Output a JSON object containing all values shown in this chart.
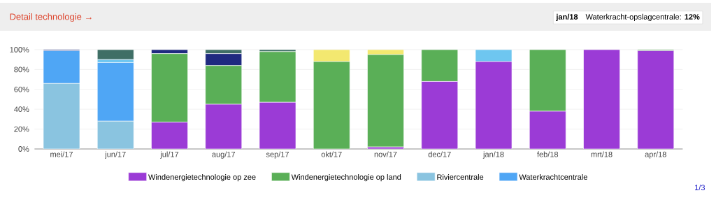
{
  "chart_data": {
    "type": "bar",
    "stacked": true,
    "title": "Detail technologie →",
    "categories": [
      "mei/17",
      "jun/17",
      "jul/17",
      "aug/17",
      "sep/17",
      "okt/17",
      "nov/17",
      "dec/17",
      "jan/18",
      "feb/18",
      "mrt/18",
      "apr/18"
    ],
    "series": [
      {
        "name": "Windenergietechnologie op zee",
        "color": "#9b3bd6",
        "values": [
          0,
          0,
          27,
          45,
          47,
          0,
          2,
          68,
          88,
          38,
          100,
          99
        ]
      },
      {
        "name": "Windenergietechnologie op land",
        "color": "#5aaf57",
        "values": [
          0,
          0,
          69,
          39,
          51,
          88,
          93,
          32,
          0,
          62,
          0,
          1
        ]
      },
      {
        "name": "Riviercentrale",
        "color": "#8ac4e0",
        "values": [
          66,
          28,
          0,
          0,
          0,
          0,
          0,
          0,
          0,
          0,
          0,
          0
        ]
      },
      {
        "name": "Waterkrachtcentrale",
        "color": "#4fa6f5",
        "values": [
          33,
          59,
          0,
          0,
          0,
          0,
          0,
          0,
          0,
          0,
          0,
          0
        ]
      },
      {
        "color": "#6ec6f0",
        "values": [
          0,
          3,
          0,
          null,
          0,
          0,
          0,
          0,
          12,
          0,
          0,
          0
        ]
      },
      {
        "color": "#1f2a80",
        "values": [
          1,
          0,
          4,
          12,
          0,
          0,
          0,
          0,
          0,
          0,
          0,
          0
        ]
      },
      {
        "color": "#3f6f66",
        "values": [
          0,
          10,
          0,
          4,
          2,
          0,
          0,
          0,
          0,
          0,
          0,
          0
        ]
      },
      {
        "color": "#f3e870",
        "values": [
          0,
          0,
          0,
          0,
          0,
          12,
          5,
          0,
          0,
          0,
          0,
          0
        ]
      }
    ],
    "ylim": [
      0,
      100
    ],
    "yticks": [
      {
        "value": 0,
        "label": "0%"
      },
      {
        "value": 20,
        "label": "20%"
      },
      {
        "value": 40,
        "label": "40%"
      },
      {
        "value": 60,
        "label": "60%"
      },
      {
        "value": 80,
        "label": "80%"
      },
      {
        "value": 100,
        "label": "100%"
      }
    ],
    "grid": "y",
    "legend": "bottom",
    "annotations": [
      "jan/18",
      "Waterkracht-opslagcentrale: **12%**",
      "1/3"
    ]
  }
}
